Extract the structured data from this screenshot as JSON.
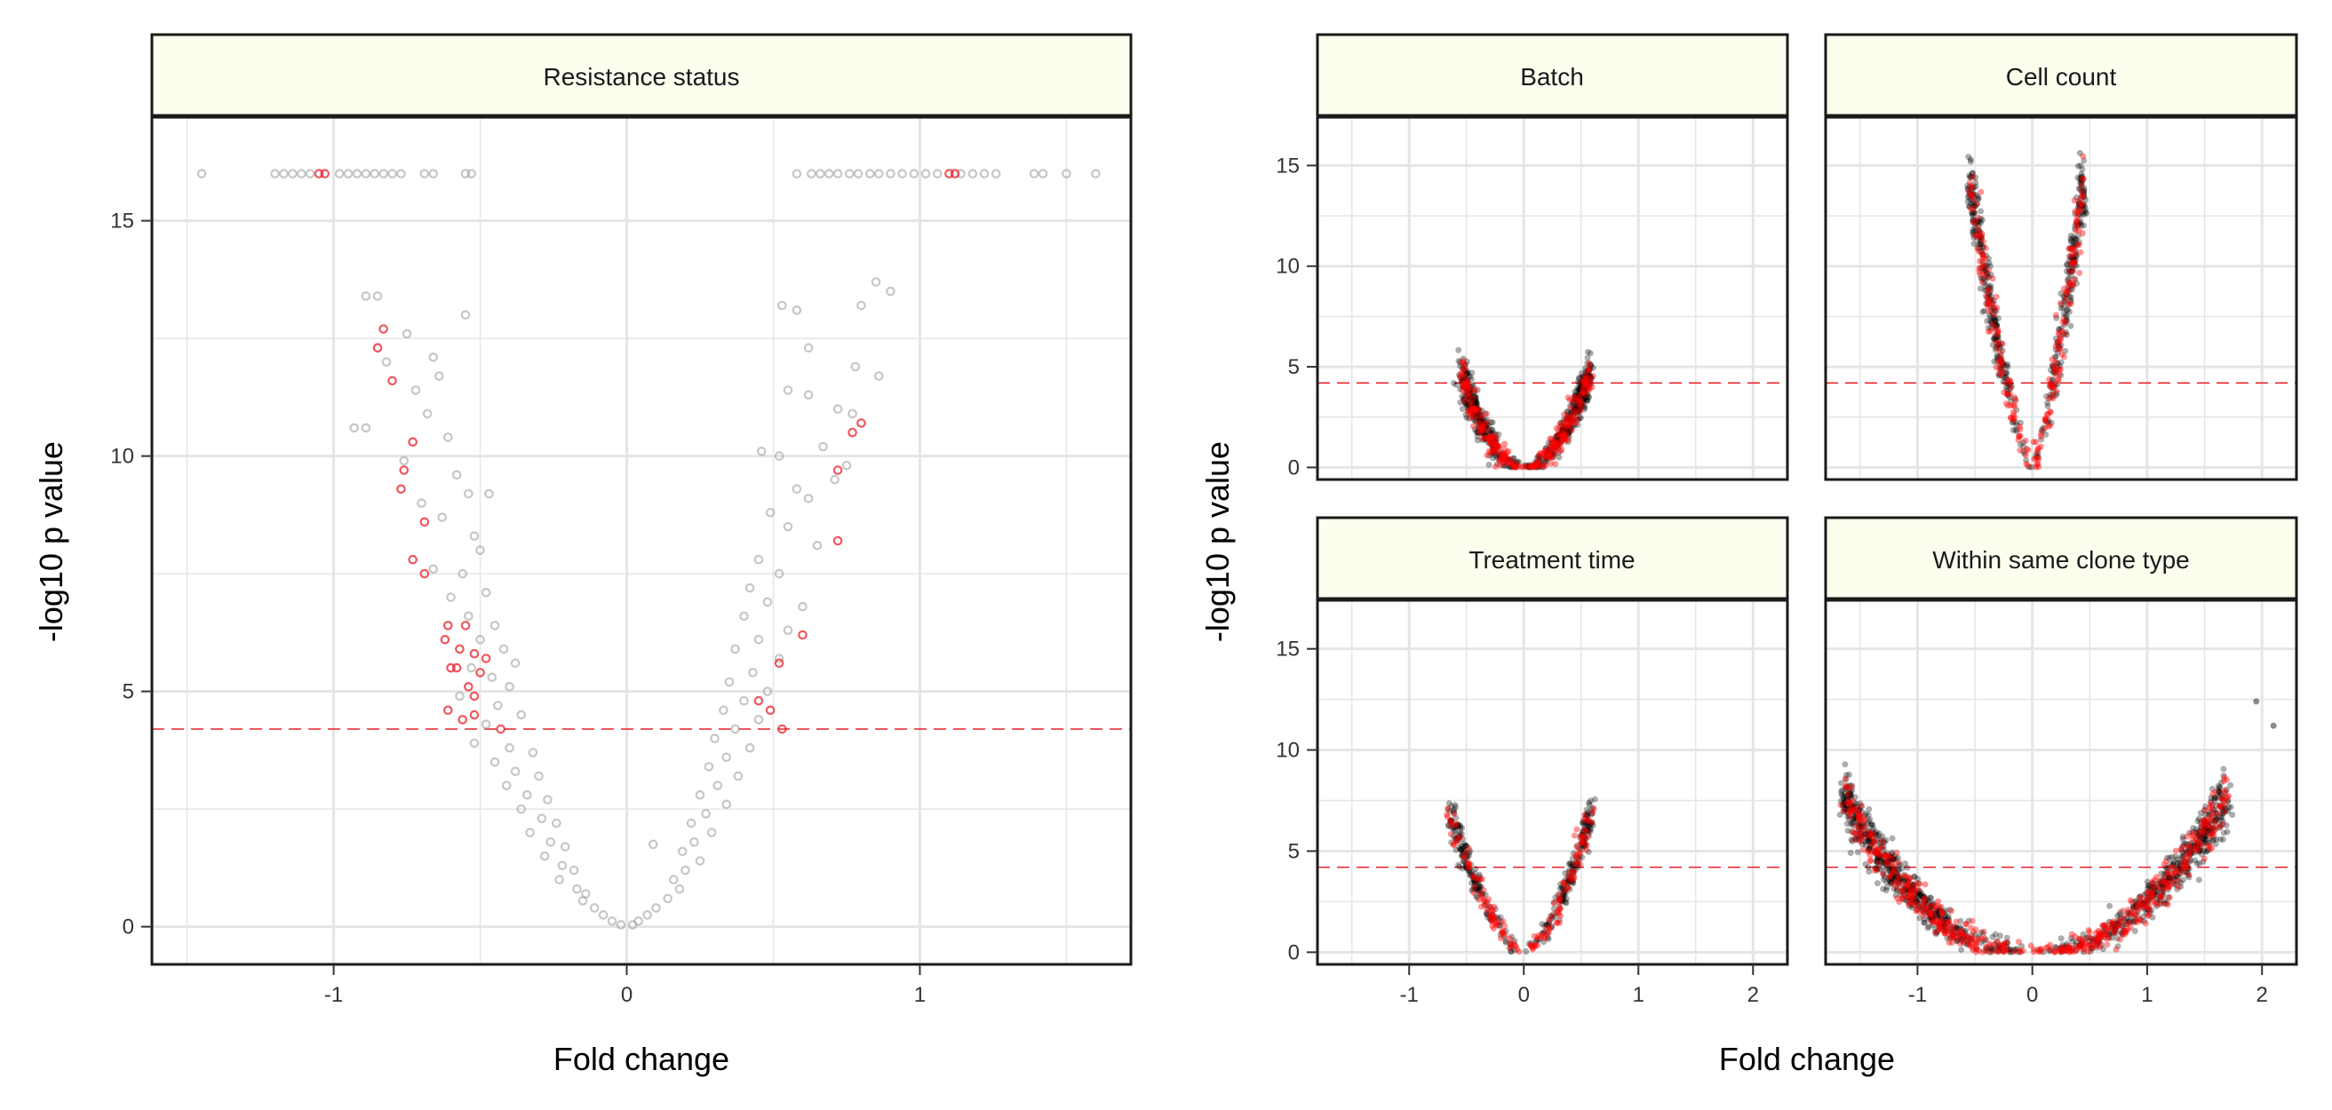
{
  "chart_data": [
    {
      "type": "scatter",
      "panel": "Resistance status",
      "xlabel": "Fold change",
      "ylabel": "-log10 p value",
      "xlim": [
        -1.62,
        1.72
      ],
      "ylim": [
        -0.8,
        17.2
      ],
      "x_ticks": [
        "-1",
        "0",
        "1"
      ],
      "y_ticks": [
        "0",
        "5",
        "10",
        "15"
      ],
      "threshold": 4.2,
      "point_style": "hollow",
      "series": [
        {
          "color": "#999999",
          "role": "not significant",
          "points": [
            [
              -1.45,
              16
            ],
            [
              -1.2,
              16
            ],
            [
              -1.17,
              16
            ],
            [
              -1.14,
              16
            ],
            [
              -1.11,
              16
            ],
            [
              -1.08,
              16
            ],
            [
              -0.98,
              16
            ],
            [
              -0.95,
              16
            ],
            [
              -0.92,
              16
            ],
            [
              -0.89,
              16
            ],
            [
              -0.86,
              16
            ],
            [
              -0.83,
              16
            ],
            [
              -0.8,
              16
            ],
            [
              -0.77,
              16
            ],
            [
              -0.69,
              16
            ],
            [
              -0.66,
              16
            ],
            [
              -0.55,
              16
            ],
            [
              -0.53,
              16
            ],
            [
              0.58,
              16
            ],
            [
              0.63,
              16
            ],
            [
              0.66,
              16
            ],
            [
              0.69,
              16
            ],
            [
              0.72,
              16
            ],
            [
              0.76,
              16
            ],
            [
              0.79,
              16
            ],
            [
              0.83,
              16
            ],
            [
              0.86,
              16
            ],
            [
              0.9,
              16
            ],
            [
              0.94,
              16
            ],
            [
              0.98,
              16
            ],
            [
              1.02,
              16
            ],
            [
              1.06,
              16
            ],
            [
              1.14,
              16
            ],
            [
              1.18,
              16
            ],
            [
              1.22,
              16
            ],
            [
              1.26,
              16
            ],
            [
              1.39,
              16
            ],
            [
              1.42,
              16
            ],
            [
              1.5,
              16
            ],
            [
              1.6,
              16
            ],
            [
              -0.89,
              13.4
            ],
            [
              -0.85,
              13.4
            ],
            [
              -0.55,
              13
            ],
            [
              -0.93,
              10.6
            ],
            [
              -0.89,
              10.6
            ],
            [
              -0.75,
              12.6
            ],
            [
              -0.82,
              12
            ],
            [
              -0.66,
              12.1
            ],
            [
              -0.64,
              11.7
            ],
            [
              -0.72,
              11.4
            ],
            [
              -0.68,
              10.9
            ],
            [
              -0.61,
              10.4
            ],
            [
              -0.76,
              9.9
            ],
            [
              -0.58,
              9.6
            ],
            [
              -0.54,
              9.2
            ],
            [
              -0.47,
              9.2
            ],
            [
              -0.7,
              9
            ],
            [
              -0.63,
              8.7
            ],
            [
              -0.52,
              8.3
            ],
            [
              -0.5,
              8
            ],
            [
              -0.66,
              7.6
            ],
            [
              -0.56,
              7.5
            ],
            [
              -0.48,
              7.1
            ],
            [
              -0.6,
              7
            ],
            [
              -0.54,
              6.6
            ],
            [
              -0.45,
              6.4
            ],
            [
              -0.5,
              6.1
            ],
            [
              -0.42,
              5.9
            ],
            [
              -0.38,
              5.6
            ],
            [
              -0.53,
              5.5
            ],
            [
              -0.46,
              5.3
            ],
            [
              -0.4,
              5.1
            ],
            [
              -0.57,
              4.9
            ],
            [
              -0.44,
              4.7
            ],
            [
              -0.36,
              4.5
            ],
            [
              -0.48,
              4.3
            ],
            [
              -0.52,
              3.9
            ],
            [
              -0.4,
              3.8
            ],
            [
              -0.32,
              3.7
            ],
            [
              -0.45,
              3.5
            ],
            [
              -0.38,
              3.3
            ],
            [
              -0.3,
              3.2
            ],
            [
              -0.41,
              3
            ],
            [
              -0.34,
              2.8
            ],
            [
              -0.27,
              2.7
            ],
            [
              -0.36,
              2.5
            ],
            [
              -0.29,
              2.3
            ],
            [
              -0.24,
              2.2
            ],
            [
              -0.33,
              2
            ],
            [
              -0.26,
              1.8
            ],
            [
              -0.21,
              1.7
            ],
            [
              -0.28,
              1.5
            ],
            [
              -0.22,
              1.3
            ],
            [
              -0.18,
              1.2
            ],
            [
              -0.23,
              1
            ],
            [
              -0.17,
              0.8
            ],
            [
              -0.14,
              0.7
            ],
            [
              -0.15,
              0.55
            ],
            [
              -0.11,
              0.4
            ],
            [
              -0.08,
              0.25
            ],
            [
              -0.05,
              0.12
            ],
            [
              -0.02,
              0.04
            ],
            [
              0.85,
              13.7
            ],
            [
              0.9,
              13.5
            ],
            [
              0.8,
              13.2
            ],
            [
              0.53,
              13.2
            ],
            [
              0.58,
              13.1
            ],
            [
              0.62,
              12.3
            ],
            [
              0.78,
              11.9
            ],
            [
              0.86,
              11.7
            ],
            [
              0.55,
              11.4
            ],
            [
              0.62,
              11.3
            ],
            [
              0.72,
              11
            ],
            [
              0.77,
              10.9
            ],
            [
              0.46,
              10.1
            ],
            [
              0.52,
              10
            ],
            [
              0.67,
              10.2
            ],
            [
              0.75,
              9.8
            ],
            [
              0.58,
              9.3
            ],
            [
              0.62,
              9.1
            ],
            [
              0.71,
              9.5
            ],
            [
              0.49,
              8.8
            ],
            [
              0.55,
              8.5
            ],
            [
              0.65,
              8.1
            ],
            [
              0.45,
              7.8
            ],
            [
              0.52,
              7.5
            ],
            [
              0.42,
              7.2
            ],
            [
              0.48,
              6.9
            ],
            [
              0.6,
              6.8
            ],
            [
              0.4,
              6.6
            ],
            [
              0.55,
              6.3
            ],
            [
              0.45,
              6.1
            ],
            [
              0.37,
              5.9
            ],
            [
              0.52,
              5.7
            ],
            [
              0.43,
              5.4
            ],
            [
              0.35,
              5.2
            ],
            [
              0.48,
              5
            ],
            [
              0.4,
              4.8
            ],
            [
              0.33,
              4.6
            ],
            [
              0.45,
              4.4
            ],
            [
              0.37,
              4.2
            ],
            [
              0.3,
              4
            ],
            [
              0.42,
              3.8
            ],
            [
              0.34,
              3.6
            ],
            [
              0.28,
              3.4
            ],
            [
              0.38,
              3.2
            ],
            [
              0.31,
              3
            ],
            [
              0.25,
              2.8
            ],
            [
              0.34,
              2.6
            ],
            [
              0.27,
              2.4
            ],
            [
              0.22,
              2.2
            ],
            [
              0.29,
              2
            ],
            [
              0.23,
              1.8
            ],
            [
              0.19,
              1.6
            ],
            [
              0.25,
              1.4
            ],
            [
              0.2,
              1.2
            ],
            [
              0.16,
              1
            ],
            [
              0.18,
              0.8
            ],
            [
              0.14,
              0.6
            ],
            [
              0.1,
              0.4
            ],
            [
              0.07,
              0.25
            ],
            [
              0.04,
              0.12
            ],
            [
              0.02,
              0.04
            ],
            [
              0.09,
              1.75
            ]
          ]
        },
        {
          "color": "#e8202a",
          "role": "highlighted",
          "points": [
            [
              -1.05,
              16
            ],
            [
              -1.03,
              16
            ],
            [
              1.1,
              16
            ],
            [
              1.12,
              16
            ],
            [
              -0.83,
              12.7
            ],
            [
              -0.85,
              12.3
            ],
            [
              -0.8,
              11.6
            ],
            [
              -0.73,
              10.3
            ],
            [
              -0.76,
              9.7
            ],
            [
              -0.77,
              9.3
            ],
            [
              -0.69,
              8.6
            ],
            [
              -0.73,
              7.8
            ],
            [
              -0.69,
              7.5
            ],
            [
              -0.61,
              6.4
            ],
            [
              -0.62,
              6.1
            ],
            [
              -0.55,
              6.4
            ],
            [
              -0.57,
              5.9
            ],
            [
              -0.52,
              5.8
            ],
            [
              -0.48,
              5.7
            ],
            [
              -0.6,
              5.5
            ],
            [
              -0.58,
              5.5
            ],
            [
              -0.5,
              5.4
            ],
            [
              -0.54,
              5.1
            ],
            [
              -0.52,
              4.9
            ],
            [
              -0.61,
              4.6
            ],
            [
              -0.56,
              4.4
            ],
            [
              -0.52,
              4.5
            ],
            [
              -0.43,
              4.2
            ],
            [
              0.8,
              10.7
            ],
            [
              0.77,
              10.5
            ],
            [
              0.72,
              9.7
            ],
            [
              0.72,
              8.2
            ],
            [
              0.6,
              6.2
            ],
            [
              0.52,
              5.6
            ],
            [
              0.45,
              4.8
            ],
            [
              0.49,
              4.6
            ],
            [
              0.53,
              4.2
            ]
          ]
        }
      ]
    },
    {
      "type": "scatter",
      "panel": "Batch",
      "xlim": [
        -1.8,
        2.3
      ],
      "ylim": [
        -0.6,
        17.4
      ],
      "x_ticks": [
        "-1",
        "0",
        "1",
        "2"
      ],
      "y_ticks": [
        "0",
        "5",
        "10",
        "15"
      ],
      "threshold": 4.2,
      "point_style": "filled",
      "shape": {
        "x_range": [
          -0.55,
          0.58
        ],
        "y_max": 4.8,
        "exponent": 2,
        "background": "#000000",
        "foreground": "#ff0000"
      }
    },
    {
      "type": "scatter",
      "panel": "Cell count",
      "xlim": [
        -1.8,
        2.3
      ],
      "ylim": [
        -0.6,
        17.4
      ],
      "x_ticks": [
        "-1",
        "0",
        "1",
        "2"
      ],
      "y_ticks": [
        "0",
        "5",
        "10",
        "15"
      ],
      "threshold": 4.2,
      "point_style": "filled",
      "shape": {
        "x_range": [
          -0.55,
          0.45
        ],
        "y_max": 14.5,
        "exponent": 1.4,
        "background": "#000000",
        "foreground": "#ff0000"
      }
    },
    {
      "type": "scatter",
      "panel": "Treatment time",
      "xlim": [
        -1.8,
        2.3
      ],
      "ylim": [
        -0.6,
        17.4
      ],
      "x_ticks": [
        "-1",
        "0",
        "1",
        "2"
      ],
      "y_ticks": [
        "0",
        "5",
        "10",
        "15"
      ],
      "threshold": 4.2,
      "point_style": "filled",
      "shape": {
        "x_range": [
          -0.65,
          0.6
        ],
        "y_max": 7.0,
        "exponent": 1.6,
        "background": "#000000",
        "foreground": "#ff0000"
      }
    },
    {
      "type": "scatter",
      "panel": "Within same clone type",
      "xlabel": "Fold change",
      "ylabel": "-log10 p value",
      "xlim": [
        -1.8,
        2.3
      ],
      "ylim": [
        -0.6,
        17.4
      ],
      "x_ticks": [
        "-1",
        "0",
        "1",
        "2"
      ],
      "y_ticks": [
        "0",
        "5",
        "10",
        "15"
      ],
      "threshold": 4.2,
      "point_style": "filled",
      "shape": {
        "x_range": [
          -1.65,
          1.7
        ],
        "y_max": 7.8,
        "exponent": 2.2,
        "background": "#000000",
        "foreground": "#ff0000"
      },
      "outliers": [
        [
          1.95,
          12.4
        ],
        [
          2.1,
          11.2
        ]
      ]
    }
  ],
  "colors": {
    "strip_fill": "#fdfeee",
    "grid": "#e5e5e5",
    "threshold_line": "#e8202a"
  }
}
